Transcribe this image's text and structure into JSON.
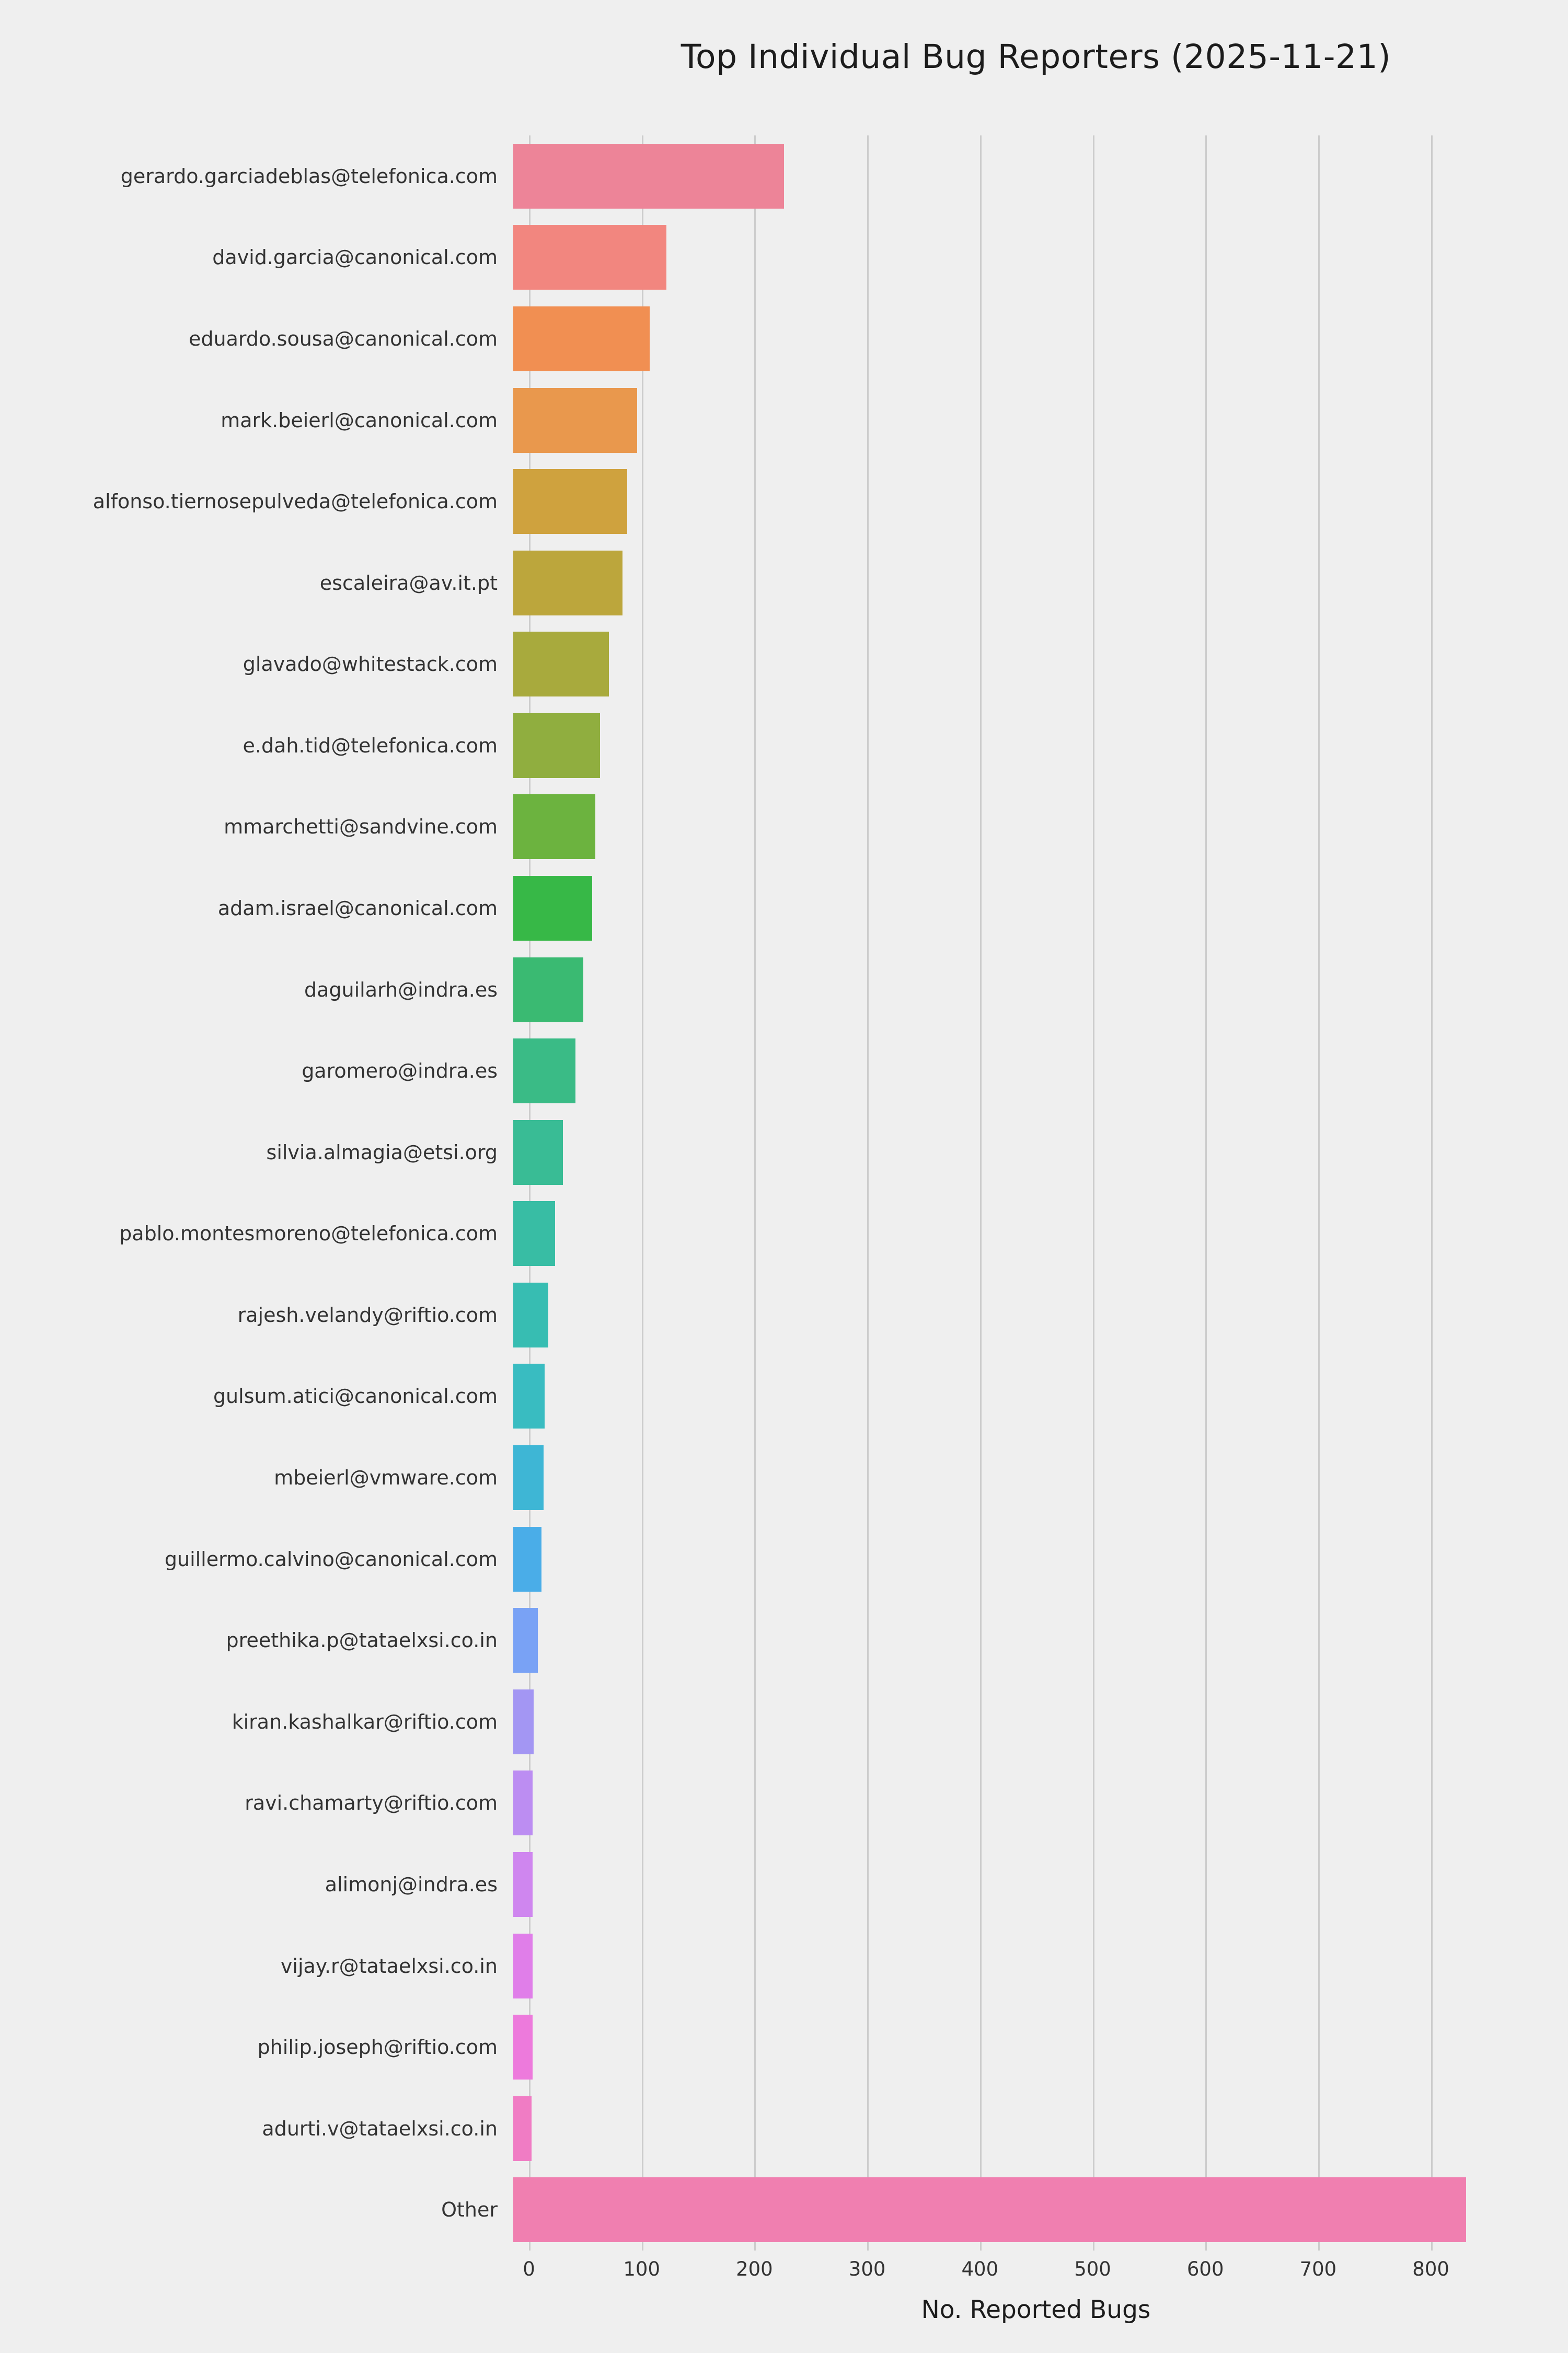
{
  "chart_data": {
    "type": "bar",
    "orientation": "horizontal",
    "title": "Top Individual Bug Reporters (2025-11-21)",
    "xlabel": "No. Reported Bugs",
    "ylabel": "",
    "xlim": [
      0,
      870
    ],
    "xticks": [
      0,
      100,
      200,
      300,
      400,
      500,
      600,
      700,
      800
    ],
    "grid": "vertical",
    "legend": "none",
    "categories": [
      "gerardo.garciadeblas@telefonica.com",
      "david.garcia@canonical.com",
      "eduardo.sousa@canonical.com",
      "mark.beierl@canonical.com",
      "alfonso.tiernosepulveda@telefonica.com",
      "escaleira@av.it.pt",
      "glavado@whitestack.com",
      "e.dah.tid@telefonica.com",
      "mmarchetti@sandvine.com",
      "adam.israel@canonical.com",
      "daguilarh@indra.es",
      "garomero@indra.es",
      "silvia.almagia@etsi.org",
      "pablo.montesmoreno@telefonica.com",
      "rajesh.velandy@riftio.com",
      "gulsum.atici@canonical.com",
      "mbeierl@vmware.com",
      "guillermo.calvino@canonical.com",
      "preethika.p@tataelxsi.co.in",
      "kiran.kashalkar@riftio.com",
      "ravi.chamarty@riftio.com",
      "alimonj@indra.es",
      "vijay.r@tataelxsi.co.in",
      "philip.joseph@riftio.com",
      "adurti.v@tataelxsi.co.in",
      "Other"
    ],
    "values": [
      240,
      136,
      121,
      110,
      101,
      97,
      85,
      77,
      73,
      70,
      62,
      55,
      44,
      37,
      31,
      28,
      27,
      25,
      22,
      18,
      17,
      17,
      17,
      17,
      16,
      845
    ],
    "colors": [
      "#ed8498",
      "#f2867f",
      "#f18f52",
      "#e9984d",
      "#cfa23e",
      "#bca63c",
      "#a8aa3d",
      "#90ae3f",
      "#6cb33f",
      "#37b847",
      "#3aba72",
      "#3abb86",
      "#39bc95",
      "#38bda4",
      "#37bdb2",
      "#39bcc1",
      "#3eb6d5",
      "#4aade8",
      "#79a2f5",
      "#a396f3",
      "#bc8df2",
      "#cf86ef",
      "#e07ee9",
      "#ed7adc",
      "#f07cc4",
      "#f07fb0"
    ],
    "style": {
      "background_color": "#efefef",
      "gridline_color": "#cccccc",
      "text_color": "#333333"
    }
  }
}
